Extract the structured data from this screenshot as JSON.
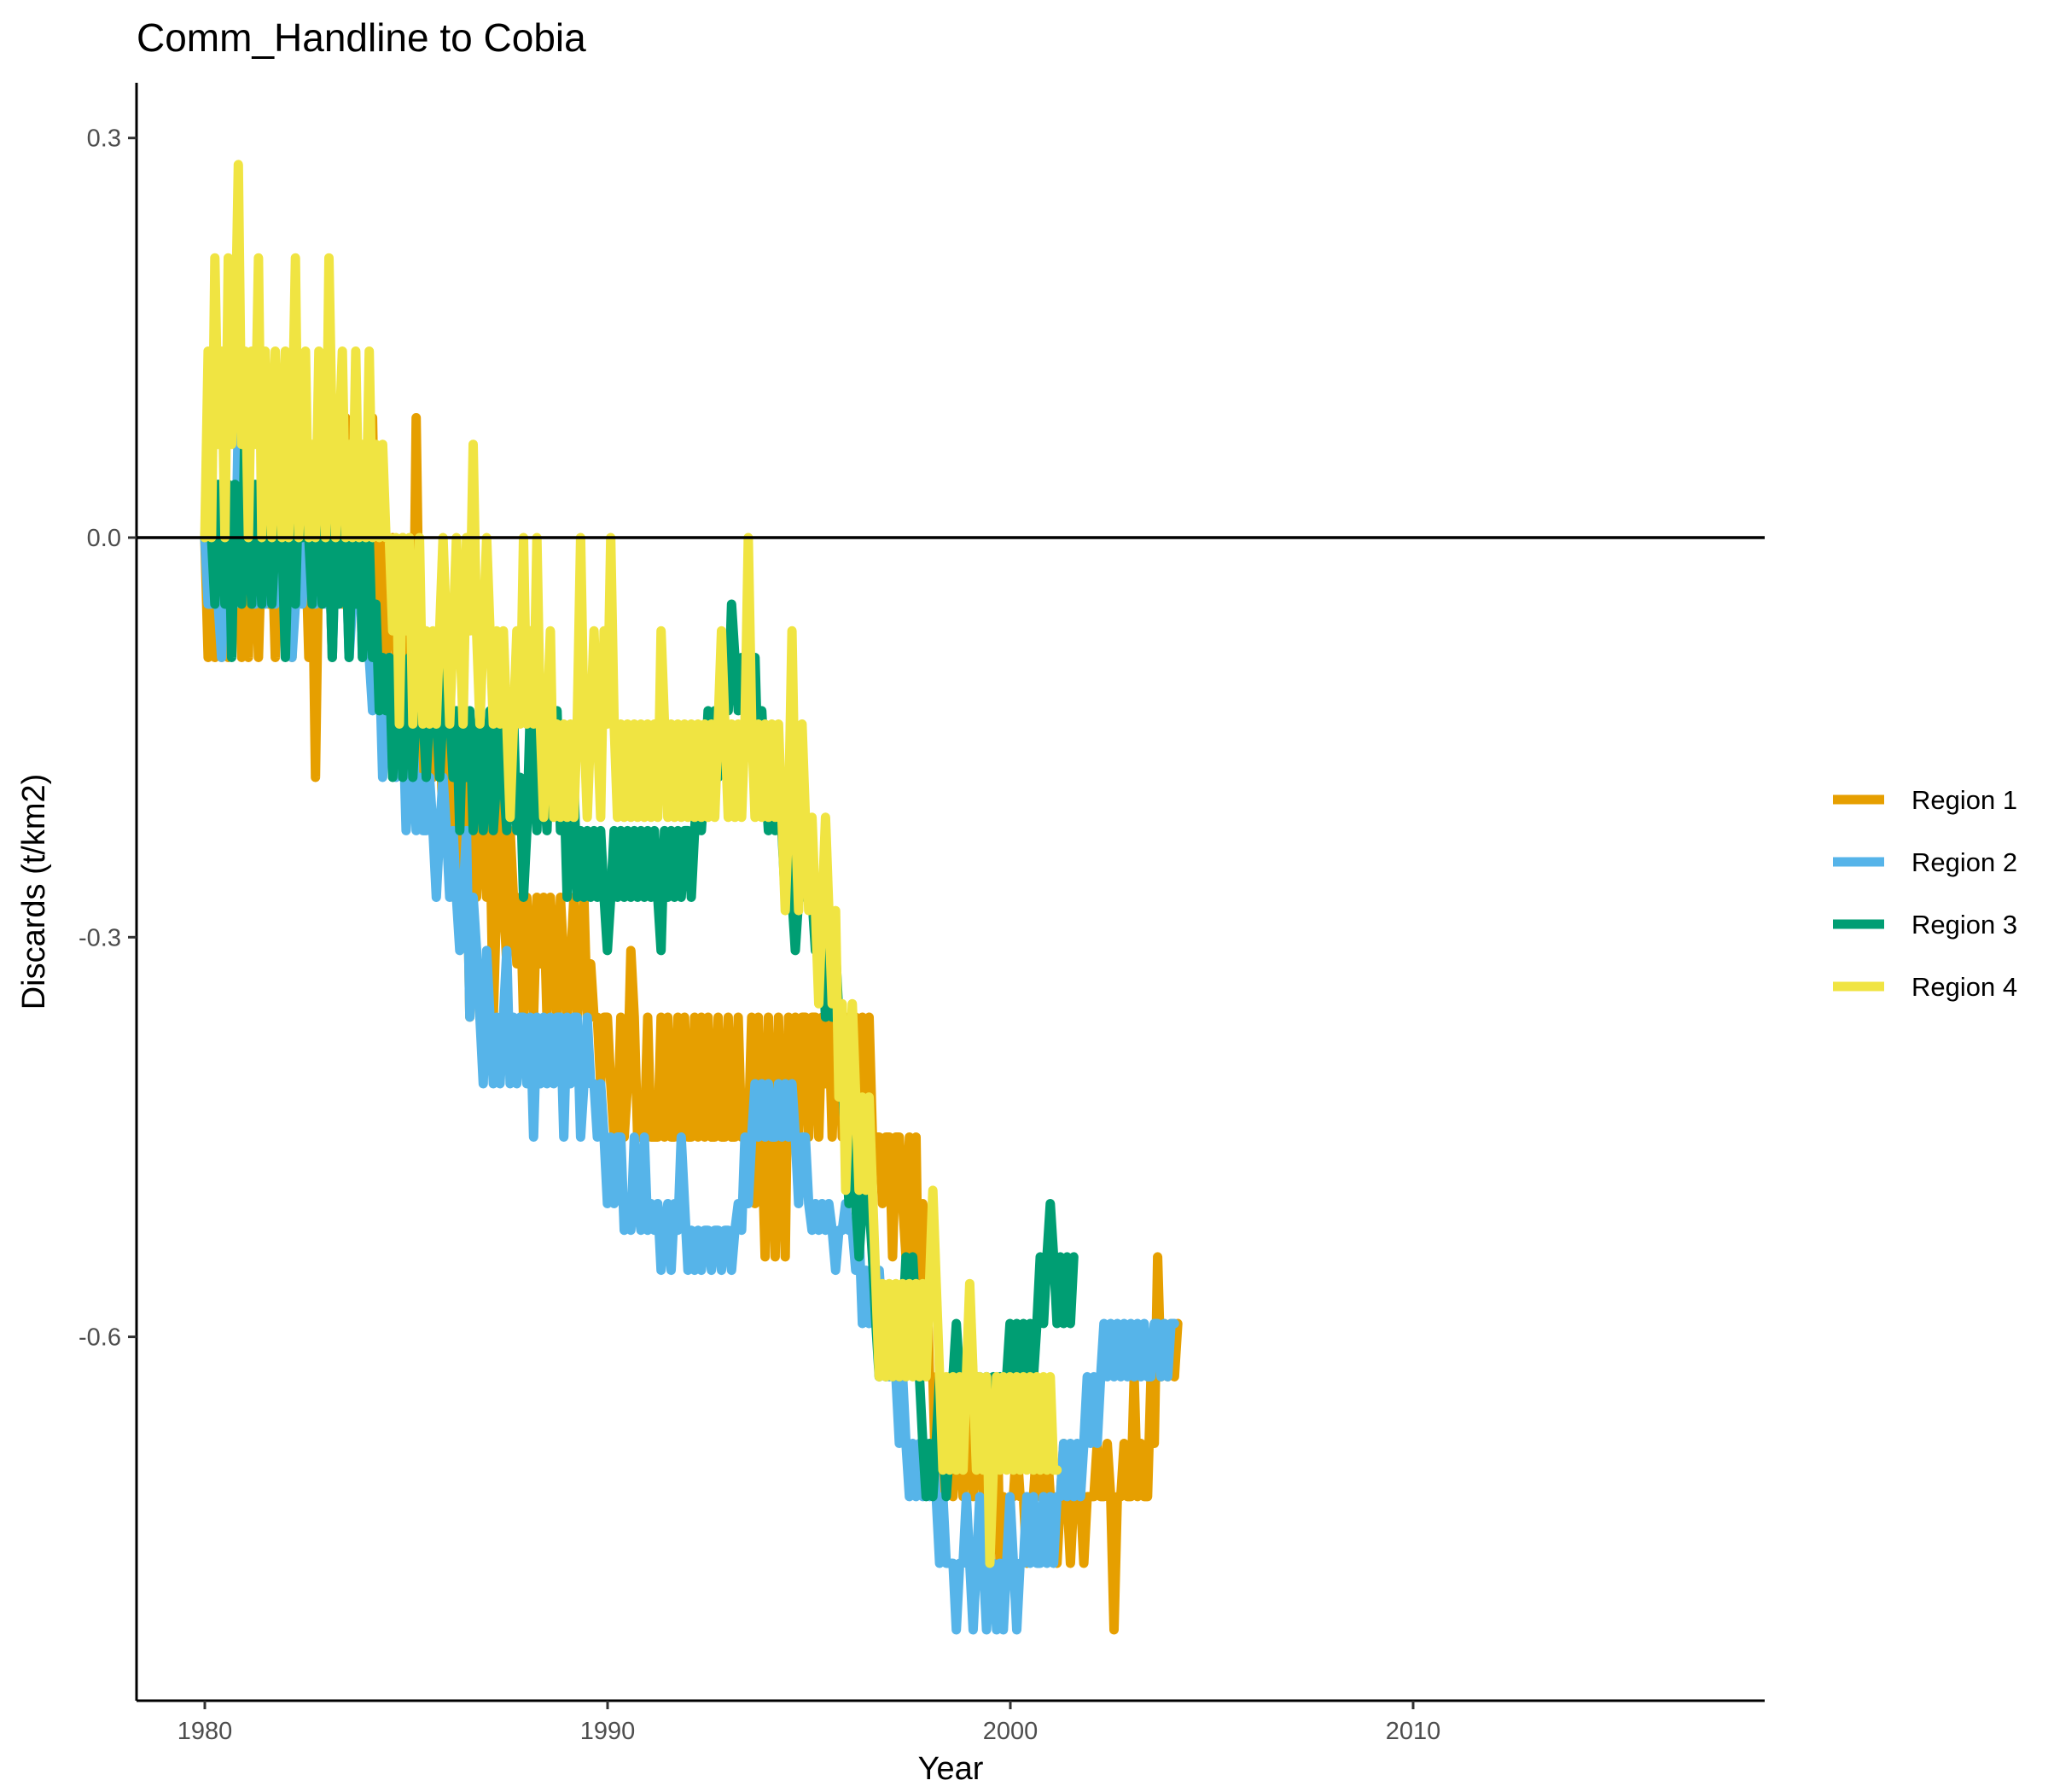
{
  "chart_data": {
    "type": "line",
    "title": "Comm_Handline to Cobia",
    "xlabel": "Year",
    "ylabel": "Discards (t/km2)",
    "xlim": [
      1978.3,
      1998.0
    ],
    "ylim": [
      -0.87,
      0.34
    ],
    "x_ticks": [
      "1980",
      "1990",
      "2000",
      "2010"
    ],
    "y_ticks": [
      "0.3",
      "0.0",
      "-0.3",
      "-0.6"
    ],
    "reference_line_y": 0.0,
    "grid": false,
    "legend_position": "right",
    "x_step": 0.0833,
    "x_start": 1980.0,
    "series": [
      {
        "name": "Region 1",
        "color": "#E69F00",
        "values": [
          0.0,
          -0.09,
          0.0,
          -0.09,
          0.0,
          -0.09,
          0.04,
          -0.09,
          0.0,
          0.04,
          0.0,
          -0.09,
          0.0,
          -0.09,
          0.04,
          0.0,
          -0.09,
          0.0,
          0.04,
          -0.05,
          0.0,
          -0.09,
          0.04,
          0.0,
          -0.05,
          0.0,
          -0.09,
          0.0,
          -0.05,
          0.04,
          0.0,
          -0.09,
          0.0,
          -0.18,
          0.0,
          -0.05,
          0.09,
          0.0,
          -0.09,
          0.04,
          0.0,
          -0.05,
          0.09,
          0.0,
          -0.05,
          0.04,
          0.0,
          -0.09,
          0.0,
          -0.05,
          0.09,
          -0.05,
          -0.09,
          0.0,
          -0.09,
          -0.05,
          0.0,
          -0.09,
          -0.13,
          0.0,
          -0.09,
          -0.05,
          -0.13,
          0.09,
          -0.09,
          -0.18,
          -0.13,
          -0.09,
          -0.18,
          -0.09,
          -0.13,
          -0.22,
          -0.18,
          -0.09,
          -0.27,
          -0.18,
          -0.27,
          -0.18,
          -0.22,
          -0.36,
          -0.18,
          -0.27,
          -0.22,
          -0.18,
          -0.27,
          -0.22,
          -0.36,
          -0.27,
          -0.18,
          -0.27,
          -0.32,
          -0.22,
          -0.27,
          -0.32,
          -0.27,
          -0.36,
          -0.27,
          -0.32,
          -0.36,
          -0.27,
          -0.32,
          -0.27,
          -0.36,
          -0.27,
          -0.32,
          -0.36,
          -0.27,
          -0.32,
          -0.36,
          -0.32,
          -0.27,
          -0.36,
          -0.32,
          -0.27,
          -0.36,
          -0.32,
          -0.36,
          -0.36,
          -0.41,
          -0.36,
          -0.36,
          -0.41,
          -0.45,
          -0.45,
          -0.36,
          -0.45,
          -0.41,
          -0.31,
          -0.36,
          -0.45,
          -0.45,
          -0.45,
          -0.36,
          -0.45,
          -0.45,
          -0.45,
          -0.36,
          -0.45,
          -0.36,
          -0.45,
          -0.45,
          -0.36,
          -0.45,
          -0.36,
          -0.45,
          -0.45,
          -0.36,
          -0.45,
          -0.36,
          -0.45,
          -0.36,
          -0.45,
          -0.45,
          -0.36,
          -0.45,
          -0.45,
          -0.36,
          -0.45,
          -0.45,
          -0.36,
          -0.45,
          -0.45,
          -0.45,
          -0.36,
          -0.5,
          -0.36,
          -0.45,
          -0.54,
          -0.36,
          -0.45,
          -0.54,
          -0.36,
          -0.45,
          -0.54,
          -0.36,
          -0.45,
          -0.36,
          -0.45,
          -0.36,
          -0.36,
          -0.45,
          -0.36,
          -0.36,
          -0.45,
          -0.36,
          -0.41,
          -0.36,
          -0.45,
          -0.36,
          -0.36,
          -0.45,
          -0.36,
          -0.45,
          -0.36,
          -0.36,
          -0.45,
          -0.36,
          -0.45,
          -0.36,
          -0.45,
          -0.45,
          -0.45,
          -0.5,
          -0.45,
          -0.45,
          -0.54,
          -0.45,
          -0.45,
          -0.5,
          -0.54,
          -0.45,
          -0.54,
          -0.45,
          -0.63,
          -0.5,
          -0.54,
          -0.63,
          -0.63,
          -0.72,
          -0.63,
          -0.72,
          -0.68,
          -0.63,
          -0.72,
          -0.68,
          -0.63,
          -0.72,
          -0.63,
          -0.68,
          -0.72,
          -0.63,
          -0.68,
          -0.72,
          -0.63,
          -0.77,
          -0.72,
          -0.63,
          -0.77,
          -0.72,
          -0.77,
          -0.72,
          -0.72,
          -0.68,
          -0.72,
          -0.72,
          -0.77,
          -0.72,
          -0.72,
          -0.68,
          -0.72,
          -0.72,
          -0.68,
          -0.72,
          -0.72,
          -0.77,
          -0.72,
          -0.68,
          -0.72,
          -0.77,
          -0.72,
          -0.72,
          -0.72,
          -0.77,
          -0.72,
          -0.72,
          -0.72,
          -0.68,
          -0.72,
          -0.72,
          -0.68,
          -0.72,
          -0.82,
          -0.72,
          -0.72,
          -0.68,
          -0.72,
          -0.72,
          -0.63,
          -0.72,
          -0.68,
          -0.72,
          -0.72,
          -0.63,
          -0.68,
          -0.54,
          -0.63,
          -0.59,
          -0.63,
          -0.59,
          -0.63,
          -0.59
        ]
      },
      {
        "name": "Region 2",
        "color": "#56B4E9",
        "values": [
          0.0,
          -0.05,
          -0.05,
          0.0,
          -0.05,
          -0.09,
          0.0,
          -0.05,
          0.0,
          -0.05,
          0.09,
          0.0,
          0.04,
          0.0,
          0.0,
          -0.05,
          0.04,
          0.0,
          -0.05,
          0.0,
          0.0,
          -0.05,
          0.04,
          0.0,
          -0.05,
          0.0,
          -0.09,
          -0.05,
          0.0,
          -0.05,
          0.0,
          0.04,
          0.0,
          -0.05,
          0.04,
          0.0,
          -0.05,
          0.0,
          -0.09,
          0.0,
          -0.05,
          0.04,
          0.0,
          -0.09,
          -0.05,
          -0.05,
          0.0,
          -0.09,
          -0.05,
          -0.09,
          -0.13,
          -0.09,
          -0.09,
          -0.18,
          -0.13,
          -0.09,
          -0.13,
          -0.18,
          -0.13,
          -0.13,
          -0.22,
          -0.18,
          -0.13,
          -0.22,
          -0.18,
          -0.22,
          -0.22,
          -0.18,
          -0.22,
          -0.27,
          -0.22,
          -0.18,
          -0.22,
          -0.27,
          -0.22,
          -0.27,
          -0.31,
          -0.27,
          -0.22,
          -0.36,
          -0.27,
          -0.31,
          -0.36,
          -0.41,
          -0.31,
          -0.36,
          -0.41,
          -0.36,
          -0.41,
          -0.36,
          -0.31,
          -0.41,
          -0.36,
          -0.41,
          -0.36,
          -0.36,
          -0.41,
          -0.36,
          -0.45,
          -0.36,
          -0.41,
          -0.36,
          -0.41,
          -0.36,
          -0.41,
          -0.36,
          -0.36,
          -0.45,
          -0.36,
          -0.41,
          -0.36,
          -0.36,
          -0.45,
          -0.41,
          -0.36,
          -0.41,
          -0.41,
          -0.45,
          -0.41,
          -0.45,
          -0.5,
          -0.45,
          -0.5,
          -0.45,
          -0.45,
          -0.52,
          -0.5,
          -0.52,
          -0.45,
          -0.5,
          -0.52,
          -0.45,
          -0.52,
          -0.5,
          -0.52,
          -0.5,
          -0.55,
          -0.52,
          -0.5,
          -0.55,
          -0.5,
          -0.52,
          -0.45,
          -0.5,
          -0.55,
          -0.52,
          -0.55,
          -0.52,
          -0.55,
          -0.52,
          -0.52,
          -0.55,
          -0.52,
          -0.52,
          -0.55,
          -0.52,
          -0.52,
          -0.55,
          -0.52,
          -0.5,
          -0.52,
          -0.45,
          -0.5,
          -0.45,
          -0.41,
          -0.45,
          -0.41,
          -0.45,
          -0.41,
          -0.45,
          -0.45,
          -0.41,
          -0.45,
          -0.41,
          -0.45,
          -0.41,
          -0.45,
          -0.5,
          -0.45,
          -0.45,
          -0.5,
          -0.52,
          -0.5,
          -0.52,
          -0.5,
          -0.52,
          -0.5,
          -0.52,
          -0.55,
          -0.52,
          -0.52,
          -0.5,
          -0.52,
          -0.52,
          -0.55,
          -0.52,
          -0.59,
          -0.55,
          -0.59,
          -0.55,
          -0.59,
          -0.55,
          -0.59,
          -0.59,
          -0.63,
          -0.59,
          -0.63,
          -0.68,
          -0.63,
          -0.68,
          -0.72,
          -0.68,
          -0.72,
          -0.68,
          -0.72,
          -0.68,
          -0.72,
          -0.68,
          -0.72,
          -0.77,
          -0.72,
          -0.77,
          -0.77,
          -0.77,
          -0.82,
          -0.77,
          -0.77,
          -0.72,
          -0.77,
          -0.82,
          -0.77,
          -0.72,
          -0.77,
          -0.82,
          -0.77,
          -0.77,
          -0.82,
          -0.77,
          -0.82,
          -0.77,
          -0.72,
          -0.77,
          -0.82,
          -0.77,
          -0.77,
          -0.72,
          -0.77,
          -0.72,
          -0.77,
          -0.77,
          -0.72,
          -0.77,
          -0.72,
          -0.77,
          -0.72,
          -0.72,
          -0.68,
          -0.72,
          -0.68,
          -0.72,
          -0.68,
          -0.72,
          -0.68,
          -0.63,
          -0.68,
          -0.63,
          -0.68,
          -0.63,
          -0.59,
          -0.63,
          -0.59,
          -0.63,
          -0.59,
          -0.63,
          -0.59,
          -0.63,
          -0.59,
          -0.63,
          -0.59,
          -0.63,
          -0.59,
          -0.63,
          -0.63,
          -0.59,
          -0.59,
          -0.63,
          -0.59,
          -0.63,
          -0.59,
          -0.59
        ]
      },
      {
        "name": "Region 3",
        "color": "#009E73",
        "values": [
          0.0,
          0.04,
          0.0,
          -0.05,
          0.04,
          0.0,
          -0.05,
          0.04,
          -0.09,
          0.04,
          0.0,
          -0.05,
          0.09,
          0.0,
          -0.05,
          0.04,
          0.0,
          -0.05,
          0.04,
          0.0,
          -0.05,
          0.0,
          0.04,
          0.0,
          -0.09,
          0.0,
          0.04,
          -0.05,
          0.04,
          0.0,
          0.09,
          0.0,
          -0.05,
          0.04,
          0.0,
          -0.05,
          0.04,
          0.0,
          -0.09,
          0.0,
          -0.05,
          0.04,
          0.0,
          -0.09,
          0.0,
          -0.05,
          0.04,
          -0.09,
          -0.05,
          0.0,
          -0.09,
          -0.05,
          -0.13,
          -0.09,
          -0.13,
          -0.09,
          -0.18,
          -0.13,
          -0.09,
          -0.18,
          -0.13,
          -0.09,
          -0.18,
          -0.13,
          -0.05,
          -0.13,
          -0.18,
          -0.13,
          -0.09,
          -0.13,
          -0.18,
          -0.13,
          -0.09,
          -0.13,
          -0.18,
          -0.13,
          -0.22,
          -0.13,
          -0.18,
          -0.13,
          -0.22,
          -0.18,
          -0.13,
          -0.22,
          -0.18,
          -0.13,
          -0.22,
          -0.18,
          -0.13,
          -0.18,
          -0.22,
          -0.18,
          -0.13,
          -0.22,
          -0.18,
          -0.27,
          -0.22,
          -0.13,
          -0.18,
          -0.22,
          -0.13,
          -0.18,
          -0.22,
          -0.13,
          -0.18,
          -0.13,
          -0.22,
          -0.18,
          -0.27,
          -0.22,
          -0.18,
          -0.27,
          -0.22,
          -0.27,
          -0.22,
          -0.27,
          -0.22,
          -0.27,
          -0.22,
          -0.27,
          -0.31,
          -0.27,
          -0.22,
          -0.27,
          -0.22,
          -0.27,
          -0.22,
          -0.27,
          -0.22,
          -0.27,
          -0.22,
          -0.27,
          -0.22,
          -0.27,
          -0.22,
          -0.27,
          -0.31,
          -0.22,
          -0.27,
          -0.22,
          -0.27,
          -0.22,
          -0.27,
          -0.22,
          -0.22,
          -0.27,
          -0.22,
          -0.18,
          -0.22,
          -0.18,
          -0.13,
          -0.18,
          -0.13,
          -0.18,
          -0.13,
          -0.09,
          -0.13,
          -0.05,
          -0.09,
          -0.13,
          -0.09,
          -0.13,
          -0.09,
          -0.13,
          -0.09,
          -0.18,
          -0.13,
          -0.18,
          -0.22,
          -0.18,
          -0.22,
          -0.18,
          -0.22,
          -0.27,
          -0.22,
          -0.27,
          -0.31,
          -0.27,
          -0.22,
          -0.27,
          -0.22,
          -0.27,
          -0.31,
          -0.27,
          -0.31,
          -0.36,
          -0.31,
          -0.36,
          -0.31,
          -0.36,
          -0.41,
          -0.45,
          -0.5,
          -0.45,
          -0.5,
          -0.54,
          -0.5,
          -0.45,
          -0.5,
          -0.54,
          -0.59,
          -0.63,
          -0.59,
          -0.63,
          -0.59,
          -0.63,
          -0.59,
          -0.63,
          -0.59,
          -0.54,
          -0.59,
          -0.54,
          -0.59,
          -0.63,
          -0.68,
          -0.72,
          -0.68,
          -0.72,
          -0.68,
          -0.63,
          -0.68,
          -0.72,
          -0.68,
          -0.63,
          -0.59,
          -0.63,
          -0.68,
          -0.63,
          -0.59,
          -0.63,
          -0.68,
          -0.63,
          -0.68,
          -0.63,
          -0.68,
          -0.63,
          -0.68,
          -0.63,
          -0.68,
          -0.63,
          -0.59,
          -0.63,
          -0.59,
          -0.63,
          -0.59,
          -0.63,
          -0.59,
          -0.63,
          -0.59,
          -0.54,
          -0.59,
          -0.54,
          -0.5,
          -0.54,
          -0.59,
          -0.54,
          -0.59,
          -0.54,
          -0.59,
          -0.54
        ]
      },
      {
        "name": "Region 4",
        "color": "#F0E442",
        "values": [
          0.0,
          0.14,
          0.0,
          0.21,
          0.07,
          0.14,
          0.0,
          0.21,
          0.07,
          0.14,
          0.28,
          0.07,
          0.14,
          0.0,
          0.14,
          0.07,
          0.21,
          0.0,
          0.14,
          0.07,
          0.0,
          0.14,
          0.07,
          0.0,
          0.14,
          0.0,
          0.07,
          0.21,
          0.0,
          0.07,
          0.14,
          0.0,
          0.07,
          0.0,
          0.14,
          0.07,
          0.0,
          0.21,
          0.07,
          0.0,
          0.07,
          0.14,
          0.0,
          0.07,
          0.0,
          0.14,
          0.0,
          0.07,
          0.0,
          0.14,
          0.0,
          0.07,
          0.0,
          0.07,
          0.0,
          0.0,
          -0.07,
          0.0,
          -0.14,
          0.0,
          -0.07,
          0.0,
          -0.14,
          -0.07,
          0.0,
          -0.14,
          -0.07,
          -0.14,
          -0.07,
          -0.14,
          -0.07,
          0.0,
          -0.07,
          -0.14,
          -0.07,
          0.0,
          -0.07,
          -0.14,
          0.0,
          -0.07,
          0.07,
          -0.07,
          -0.14,
          -0.07,
          0.0,
          -0.07,
          -0.14,
          -0.07,
          -0.14,
          -0.07,
          -0.14,
          -0.21,
          -0.14,
          -0.07,
          -0.14,
          0.0,
          -0.14,
          -0.07,
          -0.14,
          0.0,
          -0.14,
          -0.21,
          -0.14,
          -0.07,
          -0.21,
          -0.14,
          -0.21,
          -0.14,
          -0.21,
          -0.14,
          -0.21,
          -0.14,
          0.0,
          -0.14,
          -0.21,
          -0.14,
          -0.07,
          -0.14,
          -0.21,
          -0.07,
          -0.14,
          0.0,
          -0.14,
          -0.21,
          -0.14,
          -0.21,
          -0.14,
          -0.21,
          -0.14,
          -0.21,
          -0.14,
          -0.21,
          -0.14,
          -0.21,
          -0.14,
          -0.21,
          -0.07,
          -0.14,
          -0.21,
          -0.14,
          -0.21,
          -0.14,
          -0.21,
          -0.14,
          -0.21,
          -0.14,
          -0.21,
          -0.14,
          -0.21,
          -0.14,
          -0.21,
          -0.14,
          -0.21,
          -0.14,
          -0.07,
          -0.14,
          -0.21,
          -0.14,
          -0.21,
          -0.14,
          -0.21,
          -0.14,
          0.0,
          -0.14,
          -0.21,
          -0.14,
          -0.21,
          -0.14,
          -0.21,
          -0.14,
          -0.21,
          -0.14,
          -0.21,
          -0.28,
          -0.21,
          -0.07,
          -0.21,
          -0.28,
          -0.14,
          -0.21,
          -0.28,
          -0.21,
          -0.28,
          -0.35,
          -0.28,
          -0.21,
          -0.28,
          -0.35,
          -0.28,
          -0.42,
          -0.35,
          -0.49,
          -0.42,
          -0.35,
          -0.42,
          -0.49,
          -0.42,
          -0.49,
          -0.42,
          -0.49,
          -0.56,
          -0.63,
          -0.56,
          -0.63,
          -0.56,
          -0.63,
          -0.56,
          -0.63,
          -0.56,
          -0.63,
          -0.56,
          -0.63,
          -0.56,
          -0.63,
          -0.56,
          -0.63,
          -0.56,
          -0.49,
          -0.56,
          -0.63,
          -0.7,
          -0.63,
          -0.7,
          -0.63,
          -0.7,
          -0.63,
          -0.7,
          -0.63,
          -0.56,
          -0.63,
          -0.7,
          -0.63,
          -0.7,
          -0.63,
          -0.77,
          -0.7,
          -0.63,
          -0.7,
          -0.63,
          -0.7,
          -0.63,
          -0.7,
          -0.63,
          -0.7,
          -0.63,
          -0.7,
          -0.63,
          -0.7,
          -0.63,
          -0.7,
          -0.63,
          -0.7,
          -0.63,
          -0.7,
          -0.7
        ]
      }
    ]
  }
}
